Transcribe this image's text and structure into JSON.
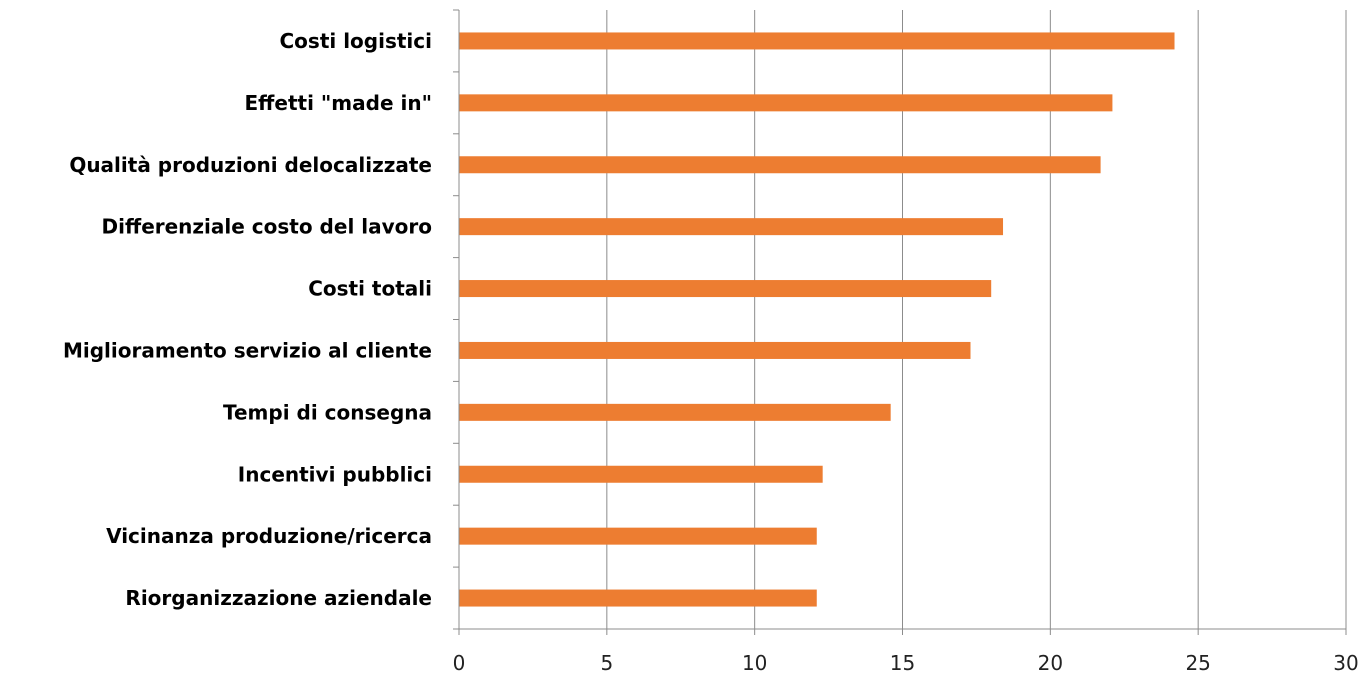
{
  "chart_data": {
    "type": "bar",
    "orientation": "horizontal",
    "categories": [
      "Costi logistici",
      "Effetti \"made in\"",
      "Qualità produzioni delocalizzate",
      "Differenziale costo del lavoro",
      "Costi totali",
      "Miglioramento servizio al cliente",
      "Tempi di consegna",
      "Incentivi pubblici",
      "Vicinanza produzione/ricerca",
      "Riorganizzazione aziendale"
    ],
    "values": [
      24.2,
      22.1,
      21.7,
      18.4,
      18.0,
      17.3,
      14.6,
      12.3,
      12.1,
      12.1
    ],
    "xlim": [
      0,
      30
    ],
    "xticks": [
      0,
      5,
      10,
      15,
      20,
      25,
      30
    ],
    "grid": true,
    "bar_color": "#ED7D31",
    "title": "",
    "xlabel": "",
    "ylabel": ""
  }
}
